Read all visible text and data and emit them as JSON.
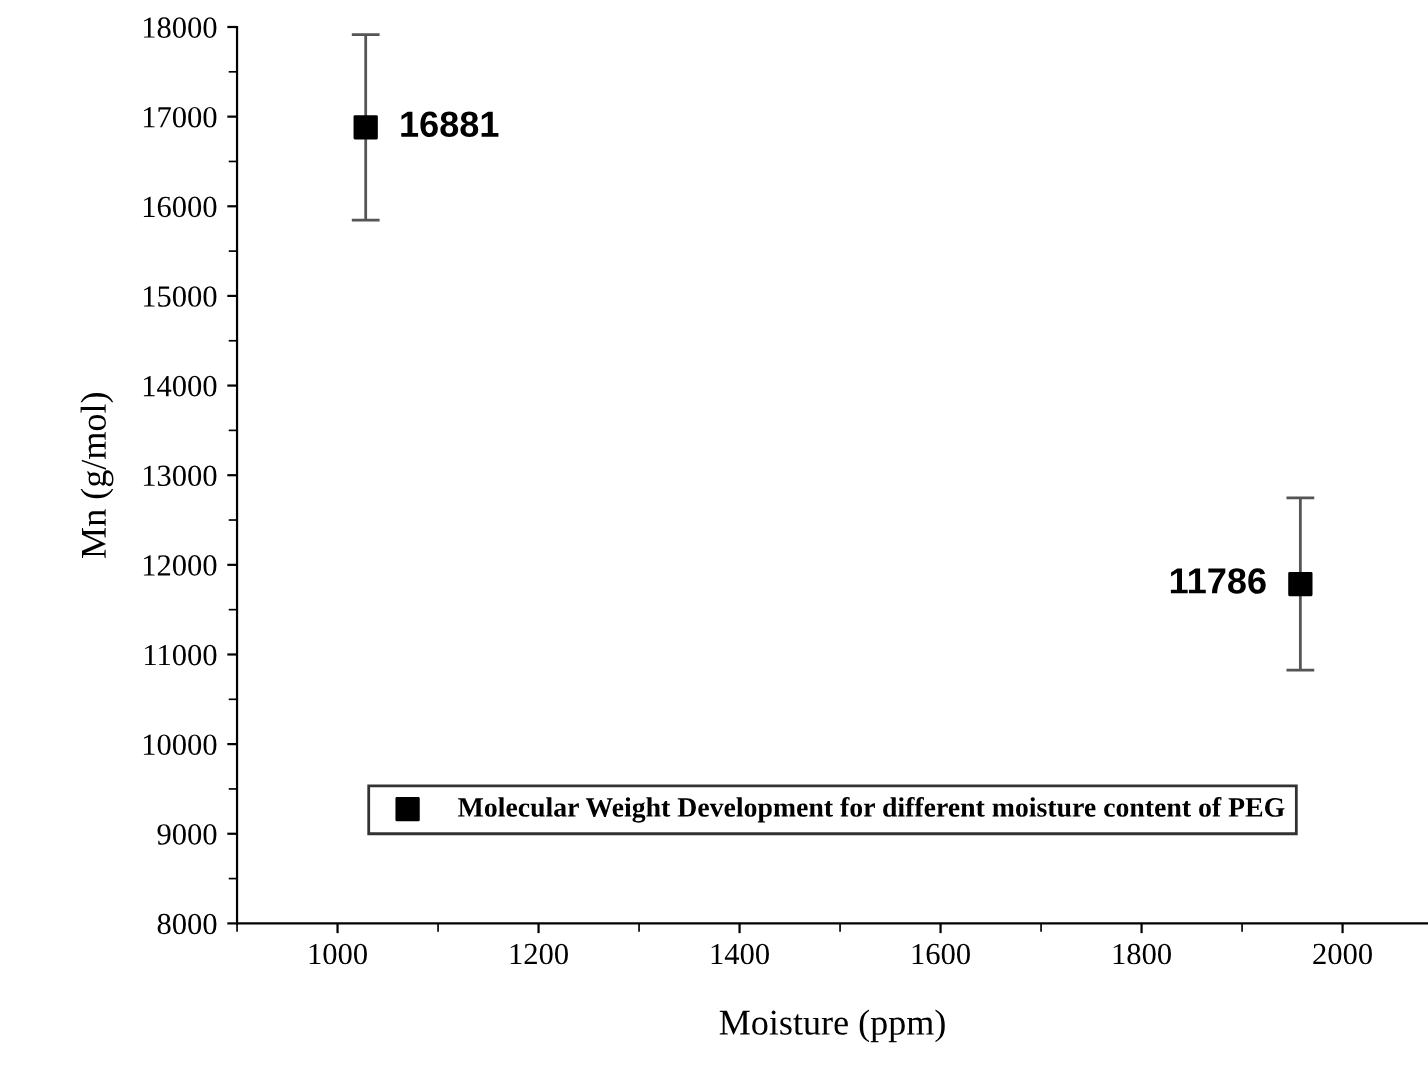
{
  "chart_data": {
    "type": "scatter",
    "xlabel": "Moisture (ppm)",
    "ylabel": "Mn (g/mol)",
    "x": [
      1028,
      1958
    ],
    "series": [
      {
        "name": "Molecular Weight Development for different moisture content of PEG",
        "color": "#000000",
        "values": [
          16881,
          11786
        ],
        "errors": [
          1035,
          960
        ]
      }
    ],
    "data_labels": true,
    "marker": "square",
    "xlim": [
      900,
      2085
    ],
    "xticks": [
      1000,
      1200,
      1400,
      1600,
      1800,
      2000
    ],
    "ylim": [
      8000,
      18000
    ],
    "yticks": [
      8000,
      9000,
      10000,
      11000,
      12000,
      13000,
      14000,
      15000,
      16000,
      17000,
      18000
    ],
    "grid": false,
    "legend": "bottom"
  }
}
